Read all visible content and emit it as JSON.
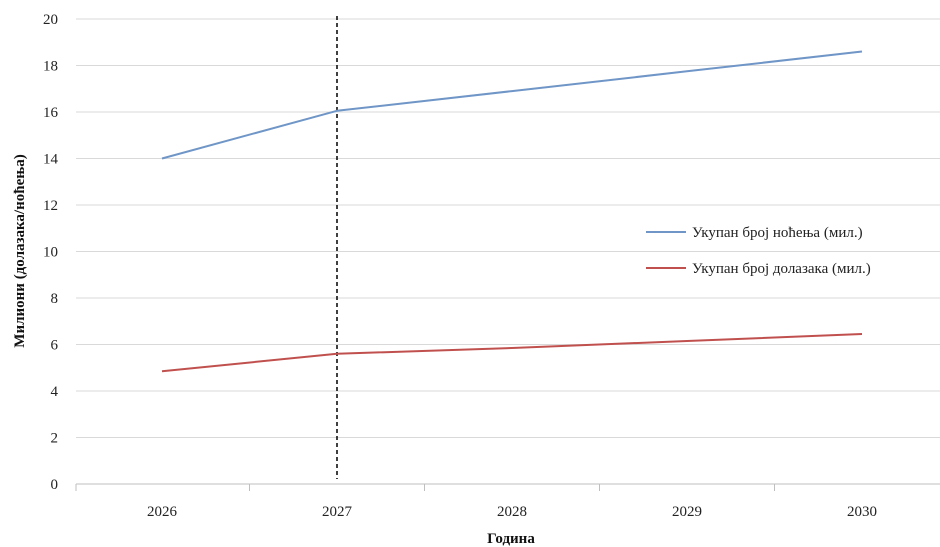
{
  "chart_data": {
    "type": "line",
    "title": "",
    "xlabel": "Година",
    "ylabel": "Милиони (долазака/ноћења)",
    "categories": [
      "2026",
      "2027",
      "2028",
      "2029",
      "2030"
    ],
    "yticks": [
      "0",
      "2",
      "4",
      "6",
      "8",
      "10",
      "12",
      "14",
      "16",
      "18",
      "20"
    ],
    "ylim": [
      0,
      20
    ],
    "grid": "horizontal",
    "legend_position": "right",
    "reference_line_at": "2027",
    "series": [
      {
        "name": "Укупан број ноћења (мил.)",
        "color": "#6f96c7",
        "values": [
          14.0,
          16.05,
          16.9,
          17.75,
          18.6
        ]
      },
      {
        "name": "Укупан број долазака (мил.)",
        "color": "#c0504d",
        "values": [
          4.85,
          5.6,
          5.85,
          6.15,
          6.45
        ]
      }
    ]
  }
}
